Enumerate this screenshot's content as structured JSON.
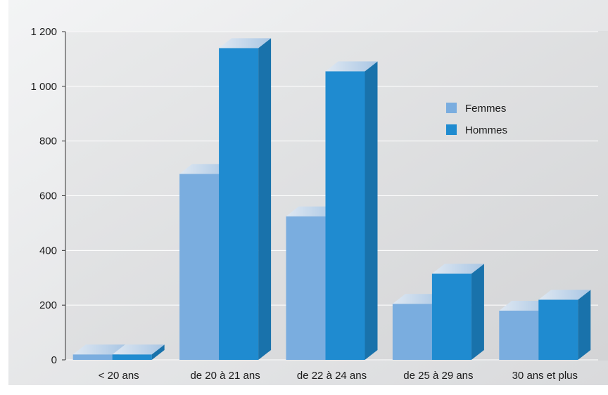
{
  "chart_data": {
    "type": "bar",
    "categories": [
      "< 20 ans",
      "de 20 à 21 ans",
      "de 22 à 24 ans",
      "de 25 à 29 ans",
      "30 ans et plus"
    ],
    "series": [
      {
        "name": "Femmes",
        "values": [
          20,
          680,
          525,
          205,
          180
        ],
        "color": "#7aaddf"
      },
      {
        "name": "Hommes",
        "values": [
          20,
          1140,
          1055,
          315,
          220
        ],
        "color": "#1f8bd0"
      }
    ],
    "y_ticks": [
      "0",
      "200",
      "400",
      "600",
      "800",
      "1 000",
      "1 200"
    ],
    "y_tick_values": [
      0,
      200,
      400,
      600,
      800,
      1000,
      1200
    ],
    "ylim": [
      0,
      1200
    ],
    "grid": true,
    "legend_position": "top-right",
    "style": "3d"
  }
}
